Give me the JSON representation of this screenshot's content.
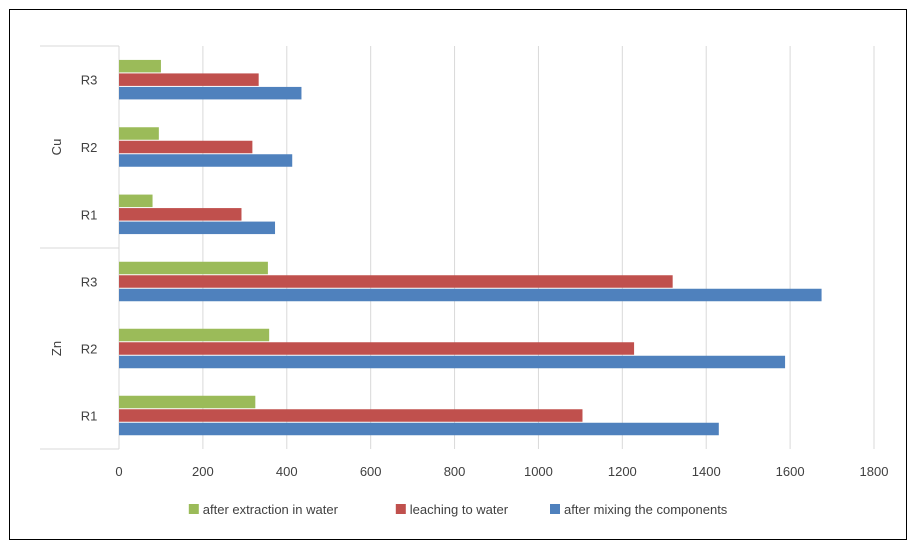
{
  "chart_data": {
    "type": "bar",
    "orientation": "horizontal",
    "groups": [
      {
        "name": "Cu",
        "categories": [
          "R3",
          "R2",
          "R1"
        ]
      },
      {
        "name": "Zn",
        "categories": [
          "R3",
          "R2",
          "R1"
        ]
      }
    ],
    "series": [
      {
        "name": "after extraction in water",
        "color": "#9BBB59",
        "values": {
          "Cu": {
            "R3": 100,
            "R2": 95,
            "R1": 80
          },
          "Zn": {
            "R3": 355,
            "R2": 358,
            "R1": 325
          }
        }
      },
      {
        "name": "leaching to water",
        "color": "#C0504D",
        "values": {
          "Cu": {
            "R3": 333,
            "R2": 318,
            "R1": 292
          },
          "Zn": {
            "R3": 1320,
            "R2": 1228,
            "R1": 1105
          }
        }
      },
      {
        "name": "after mixing the components",
        "color": "#4F81BD",
        "values": {
          "Cu": {
            "R3": 435,
            "R2": 413,
            "R1": 372
          },
          "Zn": {
            "R3": 1675,
            "R2": 1588,
            "R1": 1430
          }
        }
      }
    ],
    "xlim": [
      0,
      1800
    ],
    "xticks": [
      "0",
      "200",
      "400",
      "600",
      "800",
      "1000",
      "1200",
      "1400",
      "1600",
      "1800"
    ],
    "grid": true,
    "legend_position": "bottom",
    "title": "",
    "xlabel": "",
    "ylabel": ""
  }
}
